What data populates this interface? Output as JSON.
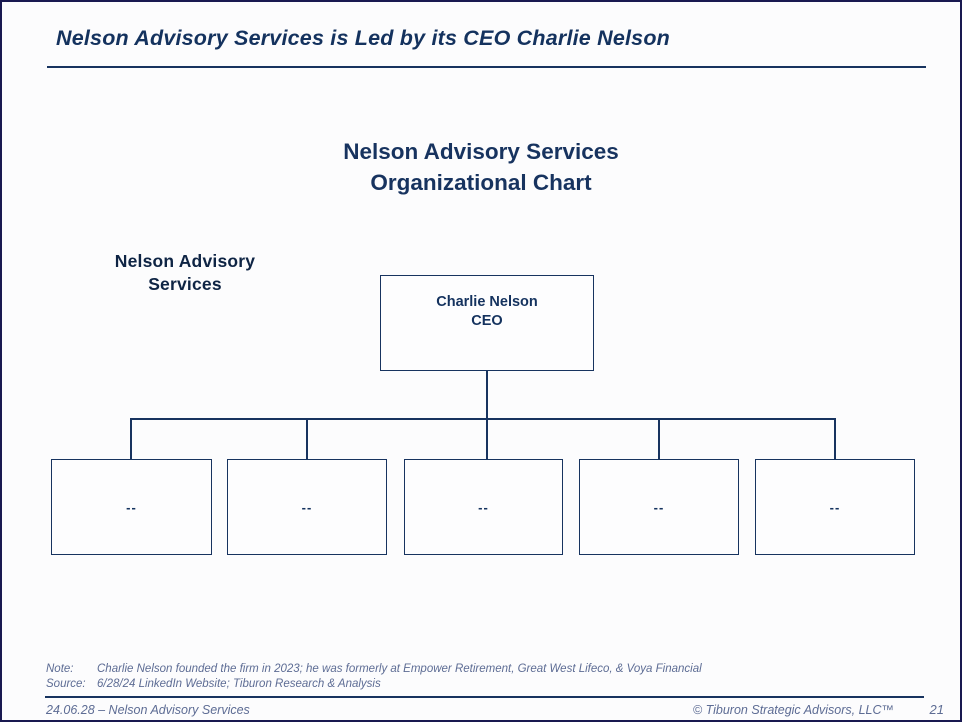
{
  "slide": {
    "title": "Nelson Advisory Services is Led by its CEO Charlie Nelson",
    "chart_title_line1": "Nelson Advisory Services",
    "chart_title_line2": "Organizational Chart",
    "side_label_line1": "Nelson Advisory",
    "side_label_line2": "Services"
  },
  "org_chart": {
    "root": {
      "name": "Charlie Nelson",
      "title": "CEO"
    },
    "children": [
      {
        "label": "--"
      },
      {
        "label": "--"
      },
      {
        "label": "--"
      },
      {
        "label": "--"
      },
      {
        "label": "--"
      }
    ]
  },
  "footnotes": {
    "note_label": "Note:",
    "note_text": "Charlie Nelson founded the firm in 2023; he was formerly at Empower Retirement, Great West Lifeco, & Voya Financial",
    "source_label": "Source:",
    "source_text": "6/28/24 LinkedIn Website; Tiburon Research & Analysis"
  },
  "footer": {
    "left": "24.06.28 – Nelson Advisory Services",
    "right": "© Tiburon Strategic Advisors, LLC™",
    "page_number": "21"
  },
  "colors": {
    "navy": "#17335f",
    "slate": "#5d6c94",
    "slide_border": "#191950",
    "background": "#fcfcfd"
  }
}
